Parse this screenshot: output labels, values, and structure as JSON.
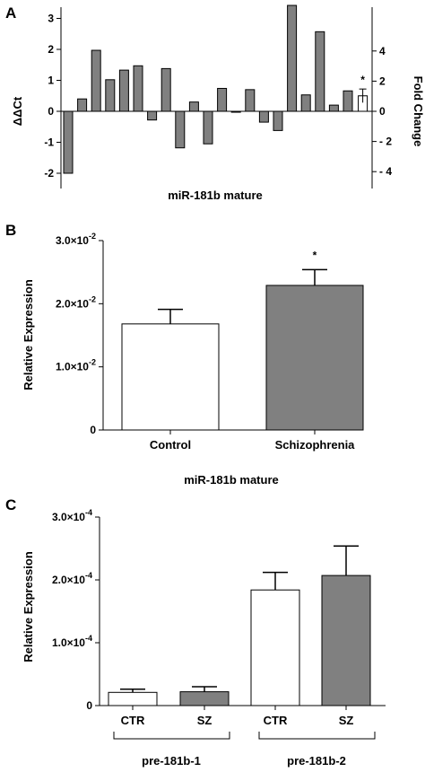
{
  "colors": {
    "bar_fill": "#808080",
    "control_fill": "#ffffff",
    "stroke": "#000000"
  },
  "chart_data": [
    {
      "panel": "A",
      "type": "bar",
      "xlabel": "miR-181b mature",
      "ylabel": "ΔΔCt",
      "ylabel_right": "Fold Change",
      "ylim": [
        -2.1,
        3.5
      ],
      "yticks": [
        "3",
        "2",
        "1",
        "0",
        "-1",
        "-2"
      ],
      "yticks_right": [
        "4",
        "2",
        "0",
        "- 2",
        "- 4"
      ],
      "values": [
        -2.0,
        0.4,
        1.97,
        1.02,
        1.33,
        1.47,
        -0.28,
        1.38,
        -1.18,
        0.3,
        -1.05,
        0.74,
        -0.03,
        0.7,
        -0.35,
        -0.62,
        3.42,
        0.53,
        2.57,
        0.2,
        0.66
      ],
      "summary_bar": {
        "value": 0.5,
        "error": 0.22,
        "fill": "white",
        "annotation": "*"
      },
      "grid": false
    },
    {
      "panel": "B",
      "type": "bar",
      "xlabel": "miR-181b mature",
      "ylabel": "Relative Expression",
      "categories": [
        "Control",
        "Schizophrenia"
      ],
      "values": [
        0.0168,
        0.0229
      ],
      "errors": [
        0.0023,
        0.0025
      ],
      "fills": [
        "white",
        "gray"
      ],
      "annotations": [
        "",
        "*"
      ],
      "ylim": [
        0,
        0.03
      ],
      "yticks": [
        {
          "value": 0.03,
          "mantissa": "3.0×10",
          "exp": "-2"
        },
        {
          "value": 0.02,
          "mantissa": "2.0×10",
          "exp": "-2"
        },
        {
          "value": 0.01,
          "mantissa": "1.0×10",
          "exp": "-2"
        },
        {
          "value": 0,
          "mantissa": "0",
          "exp": ""
        }
      ],
      "grid": false
    },
    {
      "panel": "C",
      "type": "bar",
      "ylabel": "Relative Expression",
      "categories": [
        "CTR",
        "SZ",
        "CTR",
        "SZ"
      ],
      "groups": [
        "pre-181b-1",
        "pre-181b-2"
      ],
      "values": [
        2.1e-05,
        2.2e-05,
        0.000184,
        0.000207
      ],
      "errors": [
        5e-06,
        8e-06,
        2.8e-05,
        4.7e-05
      ],
      "fills": [
        "white",
        "gray",
        "white",
        "gray"
      ],
      "ylim": [
        0,
        0.0003
      ],
      "yticks": [
        {
          "value": 0.0003,
          "mantissa": "3.0×10",
          "exp": "-4"
        },
        {
          "value": 0.0002,
          "mantissa": "2.0×10",
          "exp": "-4"
        },
        {
          "value": 0.0001,
          "mantissa": "1.0×10",
          "exp": "-4"
        },
        {
          "value": 0,
          "mantissa": "0",
          "exp": ""
        }
      ],
      "grid": false
    }
  ]
}
